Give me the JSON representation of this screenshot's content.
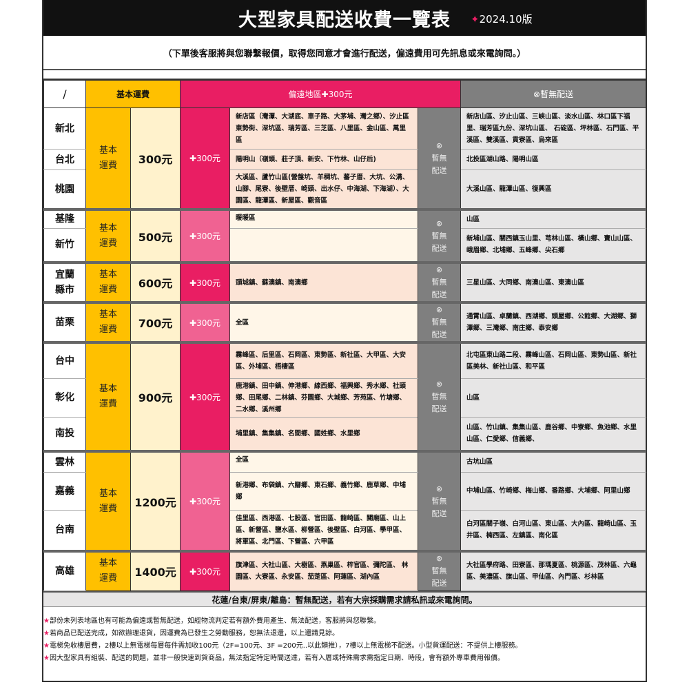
{
  "header": {
    "title": "大型家具配送收費一覽表",
    "version": "2024.10版",
    "subtitle": "（下單後客服將與您聯繫報價，取得您同意才會進行配送，偏遠費用可先訊息或來電詢問。）"
  },
  "colors": {
    "base": "#FFC000",
    "price": "#FFF2CC",
    "remote_dark": "#E91E63",
    "remote_light": "#F06292",
    "remote_area_peach": "#FCE4D6",
    "remote_area_cream": "#FFF6E8",
    "no_delivery": "#7F7F7F",
    "no_delivery_area": "#E7E6E6",
    "accent": "#E91E63"
  },
  "columns": {
    "slash": "/",
    "base": "基本運費",
    "remote": "偏遠地區✚300元",
    "none": "⊗暫無配送"
  },
  "labels": {
    "base_line1": "基本",
    "base_line2": "運費",
    "none_icon": "⊗",
    "none_line1": "暫無",
    "none_line2": "配送"
  },
  "groups": [
    {
      "price": "300元",
      "surcharge": "✚300元",
      "plus_shade": "dark",
      "area_shade": "peach",
      "rows": [
        {
          "region": "新北",
          "remote": "新店區（灣潭、大湖底、車子路、大茅埔、灣之鄉）、汐止區東勢街、深坑區、瑞芳區、三芝區、八里區、金山區、萬里區",
          "none": "新店山區、汐止山區、三峽山區、淡水山區、林口區下福里、瑞芳區九份、深坑山區、 石碇區、坪林區、石門區、平溪區、雙溪區、貢寮區、烏來區"
        },
        {
          "region": "台北",
          "remote": "陽明山（嶺頭、莊子頂、新安、下竹林、山仔后)",
          "none": "北投區湖山路、陽明山區"
        },
        {
          "region": "桃園",
          "remote": "大溪區、蘆竹山區(營盤坑、羊稠坑、蕃子厝、大坑、公溝、山腳、尾寮、後壁厝、崎頭、出水仔、中海湖、下海湖）、大園區、龍潭區、新屋區、觀音區",
          "none": "大溪山區、龍潭山區、復興區"
        }
      ]
    },
    {
      "price": "500元",
      "surcharge": "✚300元",
      "plus_shade": "light",
      "area_shade": "cream",
      "rows": [
        {
          "region": "基隆",
          "remote": "暖暖區",
          "none": "山區"
        },
        {
          "region": "新竹",
          "remote": "",
          "none": "新埔山區、關西鎮玉山里、芎林山區、橫山鄉、寶山山區、峨眉鄉、北埔鄉、五峰鄉、尖石鄉"
        }
      ]
    },
    {
      "price": "600元",
      "surcharge": "✚300元",
      "plus_shade": "dark",
      "area_shade": "peach",
      "rows": [
        {
          "region": "宜蘭縣市",
          "remote": "頭城鎮、蘇澳鎮、南澳鄉",
          "none": "三星山區、大同鄉、南澳山區、東澳山區"
        }
      ]
    },
    {
      "price": "700元",
      "surcharge": "✚300元",
      "plus_shade": "light",
      "area_shade": "cream",
      "rows": [
        {
          "region": "苗栗",
          "remote": "全區",
          "none": "通霄山區、卓蘭鎮、西湖鄉、頭屋鄉、公館鄉、大湖鄉、獅潭鄉、三灣鄉、南庄鄉、泰安鄉"
        }
      ]
    },
    {
      "price": "900元",
      "surcharge": "✚300元",
      "plus_shade": "dark",
      "area_shade": "peach",
      "rows": [
        {
          "region": "台中",
          "remote": "霧峰區、后里區、石岡區、東勢區、新社區、大甲區、大安區、外埔區、梧棲區",
          "none": "北屯區東山路二段、霧峰山區、石岡山區、東勢山區、新社區美林、新社山區、和平區"
        },
        {
          "region": "彰化",
          "remote": "鹿港鎮、田中鎮、伸港鄉、線西鄉、福興鄉、秀水鄉、社頭鄉、田尾鄉、二林鎮、芬園鄉、大城鄉、芳苑區、竹塘鄉、二水鄉、溪州鄉",
          "none": "山區"
        },
        {
          "region": "南投",
          "remote": "埔里鎮、集集鎮、名間鄉、國姓鄉、水里鄉",
          "none": "山區、竹山鎮、集集山區、鹿谷鄉、中寮鄉、魚池鄉、水里山區、仁愛鄉、信義鄉、"
        }
      ]
    },
    {
      "price": "1200元",
      "surcharge": "✚300元",
      "plus_shade": "light",
      "area_shade": "cream",
      "rows": [
        {
          "region": "雲林",
          "remote": "全區",
          "none": "古坑山區"
        },
        {
          "region": "嘉義",
          "remote": "新港鄉、布袋鎮、六腳鄉、東石鄉、義竹鄉、鹿草鄉、中埔鄉",
          "none": "中埔山區、竹崎鄉、梅山鄉、番路鄉、大埔鄉、阿里山鄉"
        },
        {
          "region": "台南",
          "remote": "佳里區、西港區、七股區、官田區、龍崎區、關廟區、山上區、新營區、鹽水區、柳營區、後壁區、白河區、學甲區、將軍區、北門區、下營區、六甲區",
          "none": "白河區關子嶺、白河山區、東山區、大內區、龍崎山區、玉井區、楠西區、左鎮區、南化區"
        }
      ]
    },
    {
      "price": "1400元",
      "surcharge": "✚300元",
      "plus_shade": "dark",
      "area_shade": "peach",
      "rows": [
        {
          "region": "高雄",
          "remote": "旗津區、大社山區、大樹區、燕巢區、梓官區、彌陀區、 林園區、大寮區、永安區、茄萣區、阿蓮區、湖內區",
          "none": "大社區學府路、田寮區、那瑪夏區、桃源區、茂林區、六龜區、美濃區、旗山區、甲仙區、內門區、杉林區"
        }
      ]
    }
  ],
  "footer_note": "花蓮/台東/屏東/離島：暫無配送，若有大宗採購需求請私訊或來電詢問。",
  "notes": [
    "部份未列表地區也有可能為偏遠或暫無配送，如經物流判定若有額外費用產生、無法配送，客服將與您聯繫。",
    "若商品已配送完成，如欲辦理退貨，因運費為已發生之勞動服務，恕無法退還，以上還請見諒。",
    "電梯免收樓層費，2樓以上無電梯每層每件需加收100元（2F=100元、3F =200元..以此類推），7樓以上無電梯不配送。小型貨運配送：不提供上樓服務。",
    "因大型家具有組裝、配送的問題，並非一般快速到貨商品，無法指定特定時間送達，若有入厝或特殊需求需指定日期、時段，會有額外專車費用報價。"
  ]
}
